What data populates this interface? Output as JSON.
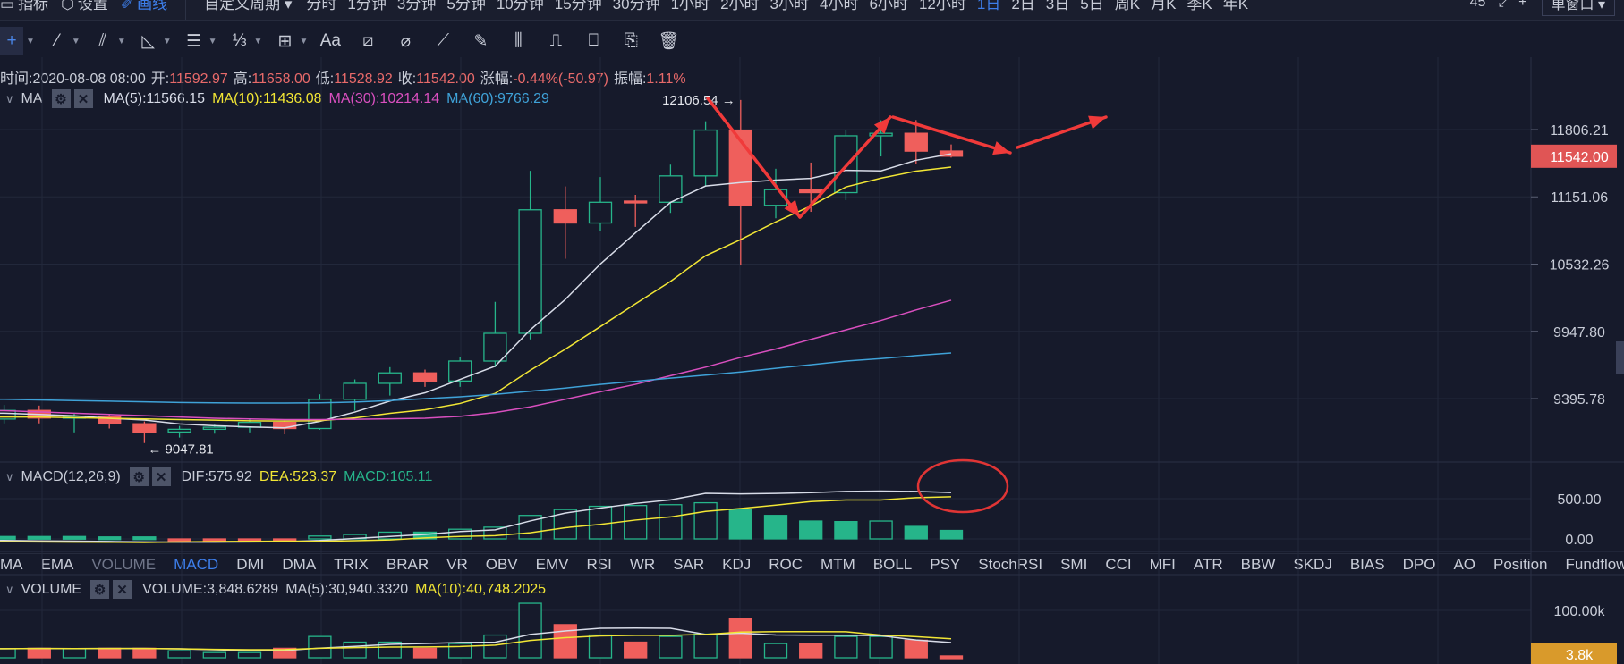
{
  "topbar": {
    "left_items": [
      {
        "label": "指标",
        "icon": "indicator-icon"
      },
      {
        "label": "设置",
        "icon": "settings-icon"
      },
      {
        "label": "画线",
        "icon": "draw-line-icon",
        "active": true
      }
    ],
    "custom_period": "自定义周期 ▾",
    "periods": [
      "分时",
      "1分钟",
      "3分钟",
      "5分钟",
      "10分钟",
      "15分钟",
      "30分钟",
      "1小时",
      "2小时",
      "3小时",
      "4小时",
      "6小时",
      "12小时",
      "1日",
      "2日",
      "3日",
      "5日",
      "周K",
      "月K",
      "季K",
      "年K"
    ],
    "active_period": "1日",
    "right_text": "45",
    "window_select": "单窗口 ▾"
  },
  "toolbar": {
    "tools": [
      {
        "icon": "crosshair-icon",
        "glyph": "+",
        "dropdown": true,
        "active": true
      },
      {
        "icon": "trend-line-icon",
        "glyph": "⁄",
        "dropdown": true
      },
      {
        "icon": "parallel-channel-icon",
        "glyph": "⫽",
        "dropdown": true
      },
      {
        "icon": "triangle-icon",
        "glyph": "◺",
        "dropdown": true
      },
      {
        "icon": "horizontal-lines-icon",
        "glyph": "☰",
        "dropdown": true
      },
      {
        "icon": "fibonacci-icon",
        "glyph": "⅓",
        "dropdown": true
      },
      {
        "icon": "rectangle-icon",
        "glyph": "⊞",
        "dropdown": true
      },
      {
        "icon": "text-icon",
        "glyph": "Aa"
      },
      {
        "icon": "measure-icon",
        "glyph": "⧄"
      },
      {
        "icon": "eraser-icon",
        "glyph": "⌀"
      },
      {
        "icon": "ruler-icon",
        "glyph": "⟋"
      },
      {
        "icon": "pen-icon",
        "glyph": "✎"
      },
      {
        "icon": "candles-icon",
        "glyph": "⫼"
      },
      {
        "icon": "lock-icon",
        "glyph": "⎍"
      },
      {
        "icon": "bookmark-icon",
        "glyph": "⎕"
      },
      {
        "icon": "note-icon",
        "glyph": "⎘"
      },
      {
        "icon": "trash-icon",
        "glyph": "🗑"
      }
    ]
  },
  "info": [
    {
      "k": "时间:",
      "v": "2020-08-08 08:00",
      "plain": true
    },
    {
      "k": "开:",
      "v": "11592.97"
    },
    {
      "k": "高:",
      "v": "11658.00"
    },
    {
      "k": "低:",
      "v": "11528.92"
    },
    {
      "k": "收:",
      "v": "11542.00"
    },
    {
      "k": "涨幅:",
      "v": "-0.44%(-50.97)"
    },
    {
      "k": "振幅:",
      "v": "1.11%"
    }
  ],
  "ma_legend": {
    "name": "MA",
    "items": [
      {
        "label": "MA(5):11566.15",
        "color": "#d8dce8"
      },
      {
        "label": "MA(10):11436.08",
        "color": "#f2e635"
      },
      {
        "label": "MA(30):10214.14",
        "color": "#d94fbf"
      },
      {
        "label": "MA(60):9766.29",
        "color": "#3fa2d8"
      }
    ]
  },
  "macd_legend": {
    "name": "MACD(12,26,9)",
    "items": [
      {
        "label": "DIF:575.92",
        "color": "#c9cdd8"
      },
      {
        "label": "DEA:523.37",
        "color": "#f2e635"
      },
      {
        "label": "MACD:105.11",
        "color": "#26b58a"
      }
    ]
  },
  "volume_legend": {
    "name": "VOLUME",
    "items": [
      {
        "label": "VOLUME:3,848.6289",
        "color": "#c9cdd8"
      },
      {
        "label": "MA(5):30,940.3320",
        "color": "#c9cdd8"
      },
      {
        "label": "MA(10):40,748.2025",
        "color": "#f2e635"
      }
    ]
  },
  "indicator_tabs": [
    "MA",
    "EMA",
    "VOLUME",
    "MACD",
    "DMI",
    "DMA",
    "TRIX",
    "BRAR",
    "VR",
    "OBV",
    "EMV",
    "RSI",
    "WR",
    "SAR",
    "KDJ",
    "ROC",
    "MTM",
    "BOLL",
    "PSY",
    "StochRSI",
    "SMI",
    "CCI",
    "MFI",
    "ATR",
    "BBW",
    "SKDJ",
    "BIAS",
    "DPO",
    "AO",
    "Position",
    "Fundflow"
  ],
  "indicator_tab_states": {
    "VOLUME": "dim",
    "MACD": "active"
  },
  "colors": {
    "up": "#26b58a",
    "down": "#ef5f5c",
    "bg": "#161a2b",
    "annotation": "#f03a3a",
    "price_tag": "#e05555",
    "volume_tag": "#d99a2b"
  },
  "chart_data": {
    "type": "candlestick",
    "interval": "1日",
    "price_axis": {
      "scale": "log",
      "ticks": [
        "11806.21",
        "11151.06",
        "10532.26",
        "9947.80",
        "9395.78"
      ],
      "current": "11542.00"
    },
    "candles": [
      [
        9234,
        9345,
        9200,
        9302
      ],
      [
        9302,
        9340,
        9200,
        9242
      ],
      [
        9242,
        9280,
        9130,
        9255
      ],
      [
        9255,
        9275,
        9160,
        9197
      ],
      [
        9197,
        9215,
        9047.81,
        9133
      ],
      [
        9133,
        9180,
        9090,
        9154
      ],
      [
        9154,
        9190,
        9120,
        9170
      ],
      [
        9170,
        9230,
        9130,
        9208
      ],
      [
        9208,
        9225,
        9115,
        9160
      ],
      [
        9160,
        9430,
        9150,
        9390
      ],
      [
        9390,
        9550,
        9300,
        9518
      ],
      [
        9518,
        9650,
        9420,
        9603
      ],
      [
        9603,
        9630,
        9490,
        9537
      ],
      [
        9537,
        9730,
        9490,
        9700
      ],
      [
        9700,
        10200,
        9650,
        9931
      ],
      [
        9931,
        11400,
        9880,
        11029
      ],
      [
        11029,
        11250,
        10580,
        10906
      ],
      [
        10906,
        11340,
        10830,
        11100
      ],
      [
        11111,
        11170,
        10870,
        11100
      ],
      [
        11100,
        11460,
        11000,
        11351
      ],
      [
        11351,
        11890,
        11250,
        11801
      ],
      [
        11801,
        12106.54,
        10520,
        11071
      ],
      [
        11071,
        11420,
        10950,
        11219
      ],
      [
        11219,
        11480,
        11010,
        11191
      ],
      [
        11191,
        11800,
        11120,
        11744
      ],
      [
        11744,
        11900,
        11540,
        11769
      ],
      [
        11769,
        11902,
        11470,
        11592
      ],
      [
        11592.97,
        11658,
        11528.92,
        11542
      ]
    ],
    "ohlc_order": [
      "open",
      "high",
      "low",
      "close"
    ],
    "high_marker": "12106.54 →",
    "low_marker": "← 9047.81",
    "ma": {
      "MA5": [
        9280,
        9270,
        9260,
        9240,
        9226,
        9196,
        9182,
        9172,
        9165,
        9216,
        9289,
        9376,
        9442,
        9550,
        9658,
        9960,
        10221,
        10533,
        10815,
        11099,
        11254,
        11287,
        11311,
        11327,
        11405,
        11399,
        11503,
        11566.15
      ],
      "MA10": [
        9250,
        9250,
        9245,
        9240,
        9235,
        9230,
        9225,
        9220,
        9218,
        9221,
        9243,
        9279,
        9307,
        9357,
        9437,
        9624,
        9798,
        9988,
        10183,
        10379,
        10607,
        10754,
        10916,
        11065,
        11245,
        11329,
        11397,
        11436.08
      ],
      "MA30": [
        9300,
        9290,
        9280,
        9270,
        9260,
        9250,
        9240,
        9235,
        9230,
        9230,
        9232,
        9236,
        9240,
        9255,
        9285,
        9330,
        9390,
        9450,
        9510,
        9580,
        9650,
        9730,
        9800,
        9880,
        9960,
        10040,
        10130,
        10214.14
      ],
      "MA60": [
        9390,
        9385,
        9380,
        9375,
        9370,
        9365,
        9362,
        9360,
        9360,
        9362,
        9368,
        9380,
        9395,
        9410,
        9430,
        9455,
        9480,
        9510,
        9535,
        9560,
        9585,
        9610,
        9640,
        9670,
        9700,
        9720,
        9745,
        9766.29
      ]
    },
    "macd": {
      "axis_ticks": [
        "500.00",
        "0.00"
      ],
      "hist": [
        30,
        30,
        30,
        25,
        25,
        -10,
        -15,
        -20,
        -20,
        36,
        55,
        84,
        84,
        120,
        146,
        292,
        365,
        405,
        415,
        425,
        449,
        365,
        292,
        222,
        215,
        222,
        155,
        105.11
      ],
      "dif": [
        -20,
        -25,
        -28,
        -32,
        -38,
        -40,
        -40,
        -38,
        -35,
        -20,
        5,
        30,
        55,
        91,
        113,
        223,
        321,
        383,
        441,
        485,
        566,
        560,
        565,
        575,
        590,
        595,
        590,
        575.92
      ],
      "dea": [
        -35,
        -38,
        -40,
        -42,
        -44,
        -38,
        -34,
        -30,
        -28,
        -30,
        -22,
        -12,
        13,
        31,
        40,
        77,
        139,
        181,
        234,
        273,
        342,
        378,
        419,
        464,
        483,
        484,
        513,
        523.37
      ]
    },
    "volume": {
      "axis_ticks": [
        "100.00k"
      ],
      "current": "3.8k",
      "values_k": [
        19,
        20,
        19,
        20,
        20,
        15,
        11,
        11,
        20,
        45,
        33,
        33,
        20,
        30,
        48,
        115,
        70,
        48,
        33,
        45,
        50,
        83,
        30,
        30,
        45,
        45,
        37,
        3.85
      ]
    }
  }
}
